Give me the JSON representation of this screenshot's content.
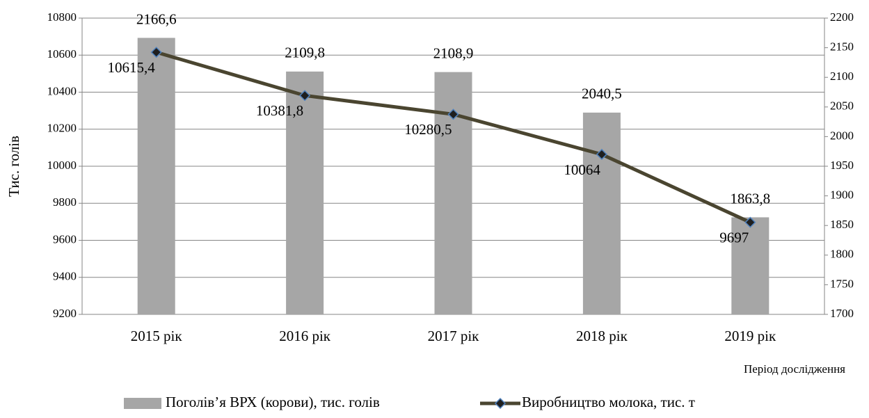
{
  "chart_data": {
    "type": "bar-line",
    "categories": [
      "2015 рік",
      "2016 рік",
      "2017 рік",
      "2018 рік",
      "2019 рік"
    ],
    "series": [
      {
        "name": "Поголів’я ВРХ (корови), тис. голів",
        "type": "bar",
        "axis": "y2",
        "color": "#a6a6a6",
        "values": [
          2166.6,
          2109.8,
          2108.9,
          2040.5,
          1863.8
        ],
        "value_labels": [
          "2166,6",
          "2109,8",
          "2108,9",
          "2040,5",
          "1863,8"
        ]
      },
      {
        "name": "Виробництво молока, тис. т",
        "type": "line",
        "axis": "y",
        "color": "#4a4530",
        "values": [
          10615.4,
          10381.8,
          10280.5,
          10064,
          9697
        ],
        "value_labels": [
          "10615,4",
          "10381,8",
          "10280,5",
          "10064",
          "9697"
        ]
      }
    ],
    "y_label": "Тис. голів",
    "x_label": "Період дослідження",
    "ylim": [
      9200,
      10800
    ],
    "yticks": [
      9200,
      9400,
      9600,
      9800,
      10000,
      10200,
      10400,
      10600,
      10800
    ],
    "y2lim": [
      1700,
      2200
    ],
    "y2ticks": [
      1700,
      1750,
      1800,
      1850,
      1900,
      1950,
      2000,
      2050,
      2100,
      2150,
      2200
    ],
    "grid": true,
    "legend": "bottom"
  }
}
